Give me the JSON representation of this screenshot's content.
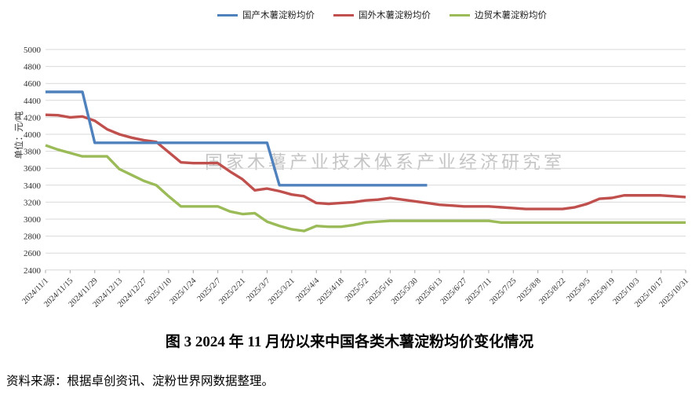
{
  "figure": {
    "title": "图 3  2024 年 11 月份以来中国各类木薯淀粉均价变化情况",
    "source": "资料来源：根据卓创资讯、淀粉世界网数据整理。",
    "watermark": "国家木薯产业技术体系产业经济研究室"
  },
  "chart_data": {
    "type": "line",
    "title": "",
    "xlabel": "",
    "ylabel": "单位：元/吨",
    "ylim": [
      2400,
      5000
    ],
    "ytick_step": 200,
    "grid": true,
    "legend_position": "top",
    "n_points": 53,
    "x_label_every": 2,
    "x_labels": [
      "2024/11/1",
      "2024/11/15",
      "2024/11/29",
      "2024/12/13",
      "2024/12/27",
      "2025/1/10",
      "2025/1/24",
      "2025/2/7",
      "2025/2/21",
      "2025/3/7",
      "2025/3/21",
      "2025/4/4",
      "2025/4/18",
      "2025/5/2",
      "2025/5/16",
      "2025/5/30",
      "2025/6/13",
      "2025/6/27",
      "2025/7/11",
      "2025/7/25",
      "2025/8/8",
      "2025/8/22",
      "2025/9/5",
      "2025/9/19",
      "2025/10/3",
      "2025/10/17",
      "2025/10/31"
    ],
    "series": [
      {
        "name": "国产木薯淀粉均价",
        "color": "#4F81BD",
        "values": [
          4500,
          4500,
          4500,
          4500,
          3900,
          3900,
          3900,
          3900,
          3900,
          3900,
          3900,
          3900,
          3900,
          3900,
          3900,
          3900,
          3900,
          3900,
          3900,
          3400,
          3400,
          3400,
          3400,
          3400,
          3400,
          3400,
          3400,
          3400,
          3400,
          3400,
          3400,
          3400,
          null,
          null,
          null,
          null,
          null,
          null,
          null,
          null,
          null,
          null,
          null,
          null,
          null,
          null,
          null,
          null,
          null,
          null,
          null,
          null,
          null
        ]
      },
      {
        "name": "国外木薯淀粉均价",
        "color": "#C0504D",
        "values": [
          4230,
          4225,
          4200,
          4210,
          4160,
          4060,
          4000,
          3960,
          3930,
          3910,
          3790,
          3670,
          3660,
          3660,
          3660,
          3560,
          3470,
          3340,
          3360,
          3330,
          3290,
          3270,
          3190,
          3180,
          3190,
          3200,
          3220,
          3230,
          3250,
          3230,
          3210,
          3190,
          3170,
          3160,
          3150,
          3150,
          3150,
          3140,
          3130,
          3120,
          3120,
          3120,
          3120,
          3140,
          3180,
          3240,
          3250,
          3280,
          3280,
          3280,
          3280,
          3270,
          3260
        ]
      },
      {
        "name": "边贸木薯淀粉均价",
        "color": "#9BBB59",
        "values": [
          3870,
          3820,
          3780,
          3740,
          3740,
          3740,
          3590,
          3520,
          3450,
          3400,
          3270,
          3150,
          3150,
          3150,
          3150,
          3090,
          3060,
          3070,
          2970,
          2920,
          2880,
          2860,
          2920,
          2910,
          2910,
          2930,
          2960,
          2970,
          2980,
          2980,
          2980,
          2980,
          2980,
          2980,
          2980,
          2980,
          2980,
          2960,
          2960,
          2960,
          2960,
          2960,
          2960,
          2960,
          2960,
          2960,
          2960,
          2960,
          2960,
          2960,
          2960,
          2960,
          2960
        ]
      }
    ]
  }
}
